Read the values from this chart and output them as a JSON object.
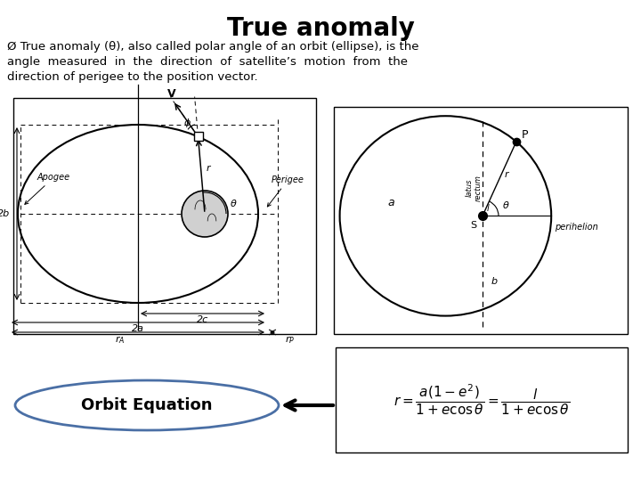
{
  "title": "True anomaly",
  "title_fontsize": 20,
  "body_line1": "Ø True anomaly (θ), also called polar angle of an orbit (ellipse), is the",
  "body_line2": "angle  measured  in  the  direction  of  satellite’s  motion  from  the",
  "body_line3": "direction of perigee to the position vector.",
  "bg_color": "#ffffff",
  "text_color": "#000000",
  "orbit_eq_label": "Orbit Equation",
  "ellipse_color": "#4a6fa5",
  "diagram_gray": "#888888"
}
